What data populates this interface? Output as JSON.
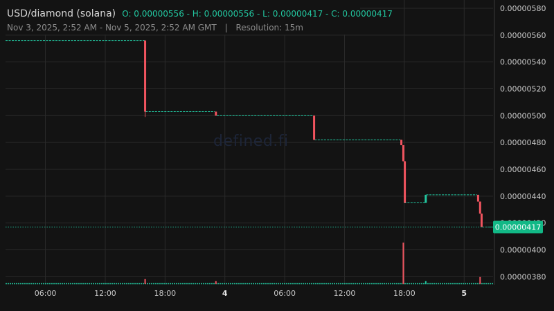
{
  "header": {
    "pair": "USD/diamond (solana)",
    "ohlc": "O: 0.00000556 - H: 0.00000556 - L: 0.00000417 - C: 0.00000417",
    "range": "Nov 3, 2025, 2:52 AM - Nov 5, 2025, 2:52 AM GMT",
    "separator": "|",
    "resolution": "Resolution: 15m"
  },
  "watermark": "defined.fi",
  "colors": {
    "background": "#131313",
    "grid": "#2a2a2a",
    "up": "#22c7a0",
    "down": "#f0545f",
    "axis_text": "#c8c8c8",
    "price_label_bg": "#12b886"
  },
  "chart_data": {
    "type": "candlestick",
    "x_unit": "hours since Nov 3, 2025 00:00 GMT",
    "x_ticks": [
      {
        "t": 6,
        "label": "06:00",
        "bold": false
      },
      {
        "t": 12,
        "label": "12:00",
        "bold": false
      },
      {
        "t": 18,
        "label": "18:00",
        "bold": false
      },
      {
        "t": 24,
        "label": "4",
        "bold": true
      },
      {
        "t": 30,
        "label": "06:00",
        "bold": false
      },
      {
        "t": 36,
        "label": "12:00",
        "bold": false
      },
      {
        "t": 42,
        "label": "18:00",
        "bold": false
      },
      {
        "t": 48,
        "label": "5",
        "bold": true
      }
    ],
    "y_ticks": [
      3.8e-06,
      4e-06,
      4.2e-06,
      4.4e-06,
      4.6e-06,
      4.8e-06,
      5e-06,
      5.2e-06,
      5.4e-06,
      5.6e-06,
      5.8e-06
    ],
    "y_tick_labels": [
      "0.00000380",
      "0.00000400",
      "0.00000420",
      "0.00000440",
      "0.00000460",
      "0.00000480",
      "0.00000500",
      "0.00000520",
      "0.00000540",
      "0.00000560",
      "0.00000580"
    ],
    "ylim": [
      3.74e-06,
      5.8e-06
    ],
    "xlim": [
      2.0,
      50.9
    ],
    "last_price": 4.17e-06,
    "last_price_label": "0.00000417",
    "flat_segments": [
      {
        "from": 2.0,
        "to": 15.95,
        "price": 5.56e-06
      },
      {
        "from": 16.05,
        "to": 23.0,
        "price": 5.03e-06
      },
      {
        "from": 23.2,
        "to": 32.9,
        "price": 5e-06
      },
      {
        "from": 33.0,
        "to": 41.6,
        "price": 4.82e-06
      },
      {
        "from": 42.0,
        "to": 44.1,
        "price": 4.35e-06
      },
      {
        "from": 44.2,
        "to": 49.3,
        "price": 4.41e-06
      },
      {
        "from": 49.8,
        "to": 50.9,
        "price": 4.17e-06
      }
    ],
    "candles": [
      {
        "t": 16.0,
        "open": 5.56e-06,
        "high": 5.56e-06,
        "low": 4.99e-06,
        "close": 5.03e-06
      },
      {
        "t": 23.1,
        "open": 5.03e-06,
        "high": 5.03e-06,
        "low": 5e-06,
        "close": 5e-06
      },
      {
        "t": 32.95,
        "open": 5e-06,
        "high": 5e-06,
        "low": 4.82e-06,
        "close": 4.82e-06
      },
      {
        "t": 41.7,
        "open": 4.82e-06,
        "high": 4.82e-06,
        "low": 4.78e-06,
        "close": 4.78e-06
      },
      {
        "t": 41.9,
        "open": 4.78e-06,
        "high": 4.78e-06,
        "low": 4.66e-06,
        "close": 4.66e-06
      },
      {
        "t": 42.05,
        "open": 4.66e-06,
        "high": 4.66e-06,
        "low": 4.35e-06,
        "close": 4.35e-06
      },
      {
        "t": 44.15,
        "open": 4.35e-06,
        "high": 4.41e-06,
        "low": 4.35e-06,
        "close": 4.41e-06
      },
      {
        "t": 49.4,
        "open": 4.41e-06,
        "high": 4.41e-06,
        "low": 4.36e-06,
        "close": 4.36e-06
      },
      {
        "t": 49.6,
        "open": 4.36e-06,
        "high": 4.36e-06,
        "low": 4.27e-06,
        "close": 4.27e-06
      },
      {
        "t": 49.75,
        "open": 4.27e-06,
        "high": 4.27e-06,
        "low": 4.17e-06,
        "close": 4.17e-06
      }
    ],
    "volume": {
      "baseline_color": "#22c7a0",
      "bars": [
        {
          "t": 16.0,
          "value": 0.12,
          "dir": "down"
        },
        {
          "t": 23.1,
          "value": 0.07,
          "dir": "down"
        },
        {
          "t": 41.9,
          "value": 1.0,
          "dir": "down"
        },
        {
          "t": 44.15,
          "value": 0.07,
          "dir": "up"
        },
        {
          "t": 49.6,
          "value": 0.17,
          "dir": "down"
        }
      ]
    }
  }
}
